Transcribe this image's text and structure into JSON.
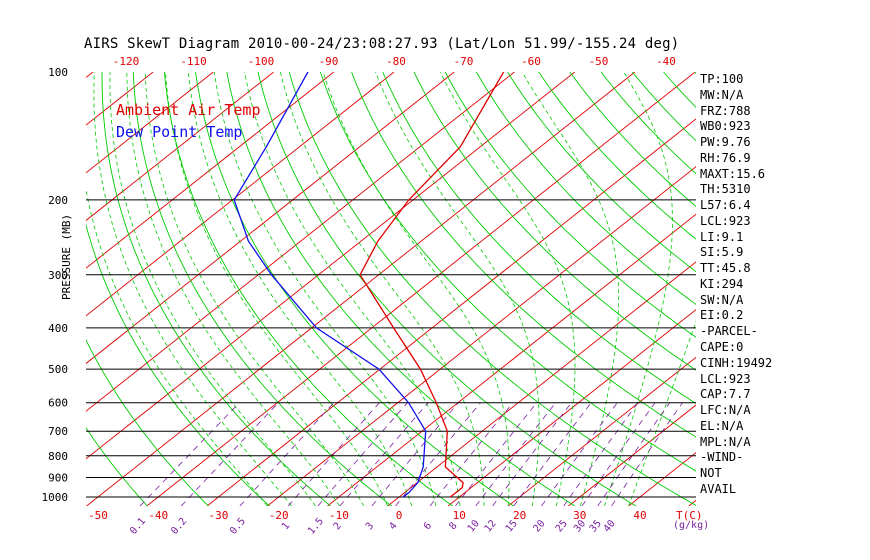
{
  "chart_data": {
    "type": "skew-t",
    "title": "AIRS SkewT Diagram 2010-00-24/23:08:27.93 (Lat/Lon 51.99/-155.24 deg)",
    "ylabel": "PRESSURE (MB)",
    "xlabel": "T(C)",
    "mixing_ratio_unit_label": "(g/kg)",
    "pressure_ticks": [
      "100",
      "200",
      "300",
      "400",
      "500",
      "600",
      "700",
      "800",
      "900",
      "1000"
    ],
    "pressure_tick_values": [
      100,
      200,
      300,
      400,
      500,
      600,
      700,
      800,
      900,
      1000
    ],
    "top_temp_ticks": [
      "-120",
      "-110",
      "-100",
      "-90",
      "-80",
      "-70",
      "-60",
      "-50",
      "-40"
    ],
    "bottom_temp_ticks": [
      "-50",
      "-40",
      "-30",
      "-20",
      "-10",
      "0",
      "10",
      "20",
      "30",
      "40"
    ],
    "mixing_ratio_labels": [
      "0.1",
      "0.2",
      "0.5",
      "1",
      "1.5",
      "2",
      "3",
      "4",
      "6",
      "8",
      "10",
      "12",
      "15",
      "20",
      "25",
      "30",
      "35",
      "40"
    ],
    "mixing_ratio_values": [
      0.1,
      0.2,
      0.5,
      1,
      1.5,
      2,
      3,
      4,
      6,
      8,
      10,
      12,
      15,
      20,
      25,
      30,
      35,
      40
    ],
    "pressure_range": [
      1050,
      100
    ],
    "bottom_temp_range": [
      -50,
      40
    ],
    "top_temp_range": [
      -120,
      -40
    ],
    "series": [
      {
        "name": "Ambient Air Temp",
        "color": "#e00000",
        "points": [
          {
            "p": 1000,
            "t": 8.5
          },
          {
            "p": 950,
            "t": 8.5
          },
          {
            "p": 925,
            "t": 7.6
          },
          {
            "p": 850,
            "t": 1.4
          },
          {
            "p": 700,
            "t": -5.8
          },
          {
            "p": 600,
            "t": -13.6
          },
          {
            "p": 500,
            "t": -23.3
          },
          {
            "p": 400,
            "t": -36.4
          },
          {
            "p": 300,
            "t": -53.1
          },
          {
            "p": 250,
            "t": -57.2
          },
          {
            "p": 200,
            "t": -60.7
          },
          {
            "p": 150,
            "t": -63.3
          },
          {
            "p": 100,
            "t": -71.8
          }
        ]
      },
      {
        "name": "Dew Point Temp",
        "color": "#1010ee",
        "points": [
          {
            "p": 1000,
            "t": 0.7
          },
          {
            "p": 975,
            "t": 0.7
          },
          {
            "p": 925,
            "t": 0.1
          },
          {
            "p": 850,
            "t": -2.3
          },
          {
            "p": 700,
            "t": -9.4
          },
          {
            "p": 600,
            "t": -18.2
          },
          {
            "p": 500,
            "t": -30.2
          },
          {
            "p": 400,
            "t": -49.2
          },
          {
            "p": 300,
            "t": -67.8
          },
          {
            "p": 250,
            "t": -78.7
          },
          {
            "p": 200,
            "t": -89.7
          },
          {
            "p": 150,
            "t": -95.5
          },
          {
            "p": 100,
            "t": -104.3
          }
        ]
      }
    ]
  },
  "indices": [
    "TP:100",
    "MW:N/A",
    "FRZ:788",
    "WB0:923",
    "PW:9.76",
    "RH:76.9",
    "MAXT:15.6",
    "TH:5310",
    "L57:6.4",
    "LCL:923",
    "LI:9.1",
    "SI:5.9",
    "TT:45.8",
    "KI:294",
    "SW:N/A",
    "EI:0.2",
    "-PARCEL-",
    "CAPE:0",
    "CINH:19492",
    "LCL:923",
    "CAP:7.7",
    "LFC:N/A",
    "EL:N/A",
    "MPL:N/A",
    "-WIND-",
    " NOT",
    "AVAIL"
  ],
  "colors": {
    "temp": "#e00000",
    "dewpoint": "#1010ee",
    "isotherm": "#e00000",
    "dry_adiabat": "#00cc00",
    "moist_adiabat": "#00cc00",
    "mixing_ratio": "#7a1fa0",
    "isobar": "#000000"
  }
}
